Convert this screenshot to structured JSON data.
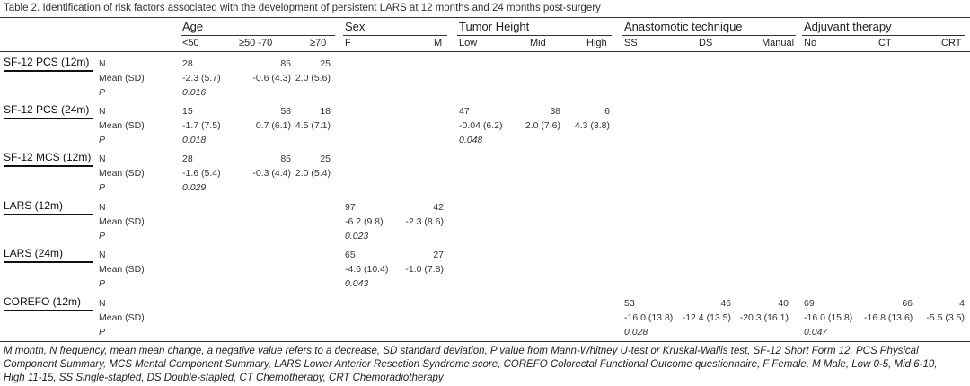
{
  "title": "Table 2. Identification of risk factors associated with the development of persistent LARS at 12 months and 24 months post-surgery",
  "groups": {
    "age": {
      "label": "Age",
      "sub": [
        "<50",
        "≥50 -70",
        "≥70"
      ]
    },
    "sex": {
      "label": "Sex",
      "sub": [
        "F",
        "M"
      ]
    },
    "tumor": {
      "label": "Tumor Height",
      "sub": [
        "Low",
        "Mid",
        "High"
      ]
    },
    "anast": {
      "label": "Anastomotic technique",
      "sub": [
        "SS",
        "DS",
        "Manual"
      ]
    },
    "adj": {
      "label": "Adjuvant therapy",
      "sub": [
        "No",
        "CT",
        "CRT"
      ]
    }
  },
  "row_labels": {
    "n": "N",
    "mean": "Mean (SD)",
    "p": "P"
  },
  "rows": [
    {
      "label": "SF-12 PCS (12m)",
      "group": "age",
      "n": [
        "28",
        "85",
        "25"
      ],
      "mean": [
        "-2.3 (5.7)",
        "-0.6 (4.3)",
        "2.0 (5.6)"
      ],
      "p": "0.016"
    },
    {
      "label": "SF-12 PCS (24m)",
      "group": "age",
      "n": [
        "15",
        "58",
        "18"
      ],
      "mean": [
        "-1.7 (7.5)",
        "0.7 (6.1)",
        "4.5 (7.1)"
      ],
      "p": "0.018",
      "extra": {
        "group": "tumor",
        "n": [
          "47",
          "38",
          "6"
        ],
        "mean": [
          "-0.04 (6.2)",
          "2.0 (7.6)",
          "4.3 (3.8)"
        ],
        "p": "0.048"
      }
    },
    {
      "label": "SF-12 MCS (12m)",
      "group": "age",
      "n": [
        "28",
        "85",
        "25"
      ],
      "mean": [
        "-1.6 (5.4)",
        "-0.3 (4.4)",
        "2.0 (5.4)"
      ],
      "p": "0.029"
    },
    {
      "label": "LARS (12m)",
      "group": "sex",
      "n": [
        "97",
        "42"
      ],
      "mean": [
        "-6.2 (9.8)",
        "-2.3 (8.6)"
      ],
      "p": "0.023"
    },
    {
      "label": "LARS (24m)",
      "group": "sex",
      "n": [
        "65",
        "27"
      ],
      "mean": [
        "-4.6 (10.4)",
        "-1.0 (7.8)"
      ],
      "p": "0.043"
    },
    {
      "label": "COREFO (12m)",
      "group": "anast",
      "n": [
        "53",
        "46",
        "40"
      ],
      "mean": [
        "-16.0 (13.8)",
        "-12.4 (13.5)",
        "-20.3 (16.1)"
      ],
      "p": "0.028",
      "extra": {
        "group": "adj",
        "n": [
          "69",
          "66",
          "4"
        ],
        "mean": [
          "-16.0 (15.8)",
          "-16.8 (13.6)",
          "-5.5 (3.5)"
        ],
        "p": "0.047"
      }
    }
  ],
  "footnote": "M month, N frequency, mean mean change, a negative value refers to a decrease, SD standard deviation, P value from Mann-Whitney U-test or Kruskal-Wallis test, SF-12 Short Form 12, PCS Physical Component Summary, MCS Mental Component Summary, LARS Lower Anterior Resection Syndrome score, COREFO Colorectal Functional Outcome questionnaire, F Female, M Male, Low 0-5, Mid 6-10, High 11-15, SS Single-stapled, DS Double-stapled, CT Chemotherapy, CRT Chemoradiotherapy"
}
